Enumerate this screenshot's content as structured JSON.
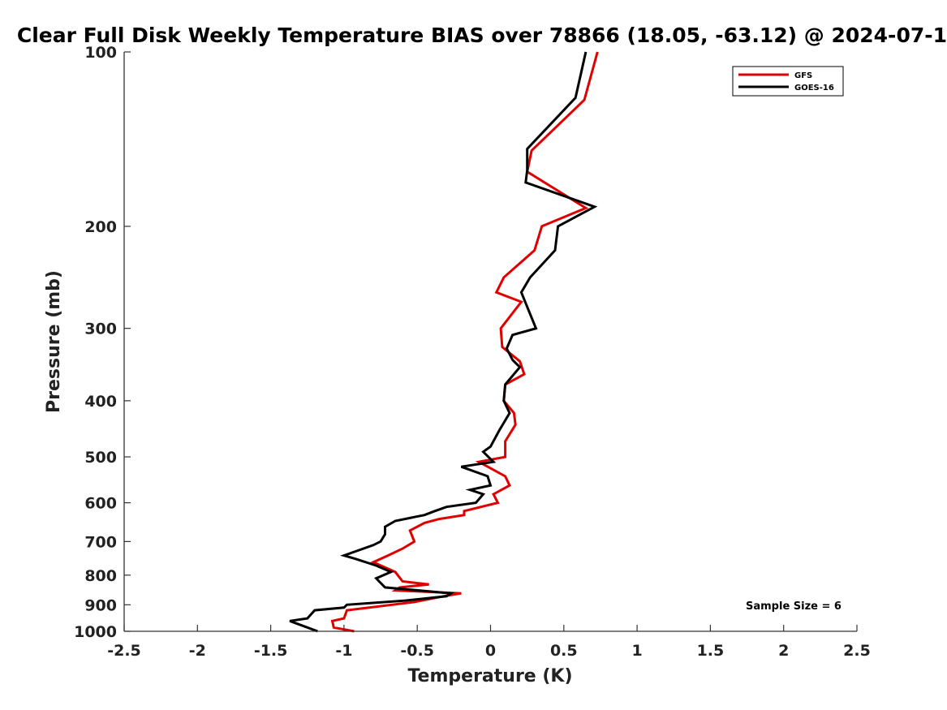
{
  "chart_data": {
    "type": "line",
    "title": "Clear Full Disk Weekly Temperature BIAS over 78866 (18.05, -63.12) @ 2024-07-1",
    "xlabel": "Temperature (K)",
    "ylabel": "Pressure (mb)",
    "xlim": [
      -2.5,
      2.5
    ],
    "ylim": [
      1000,
      100
    ],
    "y_scale": "log",
    "y_reversed": true,
    "grid": false,
    "legend_position": "top-right",
    "x_ticks": [
      -2.5,
      -2,
      -1.5,
      -1,
      -0.5,
      0,
      0.5,
      1,
      1.5,
      2,
      2.5
    ],
    "x_tick_labels": [
      "-2.5",
      "-2",
      "-1.5",
      "-1",
      "-0.5",
      "0",
      "0.5",
      "1",
      "1.5",
      "2",
      "2.5"
    ],
    "y_ticks": [
      100,
      200,
      300,
      400,
      500,
      600,
      700,
      800,
      900,
      1000
    ],
    "y_tick_labels": [
      "100",
      "200",
      "300",
      "400",
      "500",
      "600",
      "700",
      "800",
      "900",
      "1000"
    ],
    "annotation": "Sample Size = 6",
    "series": [
      {
        "name": "GFS",
        "color": "#e00000",
        "x": [
          0.73,
          0.64,
          0.28,
          0.25,
          0.65,
          0.35,
          0.3,
          0.09,
          0.04,
          0.21,
          0.07,
          0.08,
          0.2,
          0.23,
          0.1,
          0.09,
          0.16,
          0.17,
          0.1,
          0.1,
          -0.08,
          0.1,
          0.13,
          0.02,
          0.05,
          -0.18,
          -0.18,
          -0.35,
          -0.45,
          -0.55,
          -0.52,
          -0.6,
          -0.7,
          -0.8,
          -0.65,
          -0.6,
          -0.42,
          -0.62,
          -0.65,
          -0.2,
          -0.32,
          -0.52,
          -0.98,
          -1.0,
          -1.08,
          -1.07,
          -0.93
        ],
        "y": [
          100,
          121,
          148,
          161,
          186,
          200,
          220,
          245,
          260,
          270,
          300,
          323,
          342,
          360,
          375,
          400,
          420,
          440,
          470,
          500,
          510,
          540,
          560,
          580,
          600,
          620,
          630,
          640,
          650,
          670,
          700,
          720,
          740,
          760,
          790,
          820,
          830,
          840,
          850,
          860,
          870,
          890,
          920,
          950,
          960,
          985,
          1000
        ]
      },
      {
        "name": "GOES-16",
        "color": "#000000",
        "x": [
          0.65,
          0.58,
          0.25,
          0.25,
          0.24,
          0.71,
          0.46,
          0.44,
          0.27,
          0.21,
          0.31,
          0.15,
          0.11,
          0.15,
          0.2,
          0.1,
          0.09,
          0.13,
          0.06,
          0.0,
          -0.05,
          0.02,
          -0.2,
          -0.02,
          0.0,
          -0.14,
          -0.05,
          -0.1,
          -0.3,
          -0.38,
          -0.45,
          -0.65,
          -0.72,
          -0.72,
          -0.75,
          -0.8,
          -1.0,
          -0.92,
          -0.78,
          -0.68,
          -0.78,
          -0.76,
          -0.72,
          -0.27,
          -0.3,
          -0.58,
          -0.98,
          -1.0,
          -1.2,
          -1.25,
          -1.37,
          -1.18
        ],
        "y": [
          100,
          120,
          147,
          160,
          168,
          185,
          200,
          220,
          245,
          260,
          300,
          308,
          325,
          340,
          350,
          375,
          400,
          420,
          450,
          480,
          490,
          510,
          520,
          540,
          560,
          570,
          580,
          600,
          610,
          620,
          630,
          645,
          660,
          680,
          700,
          710,
          740,
          750,
          770,
          790,
          810,
          820,
          840,
          860,
          870,
          885,
          900,
          910,
          920,
          950,
          960,
          1000
        ]
      }
    ]
  }
}
